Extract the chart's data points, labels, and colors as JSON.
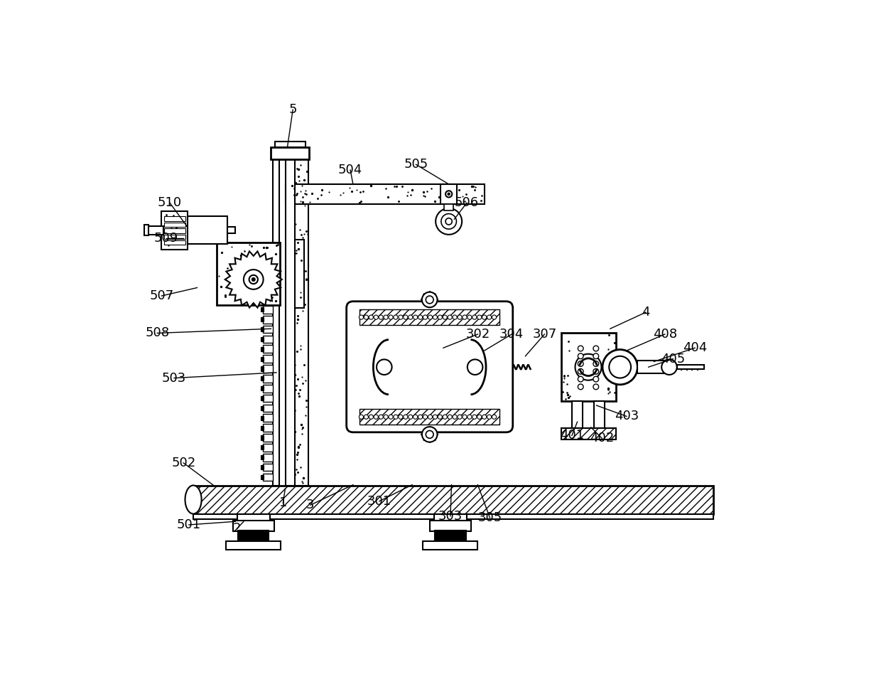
{
  "bg_color": "#ffffff",
  "figsize": [
    12.4,
    9.52
  ],
  "dpi": 100,
  "lw": 1.5
}
